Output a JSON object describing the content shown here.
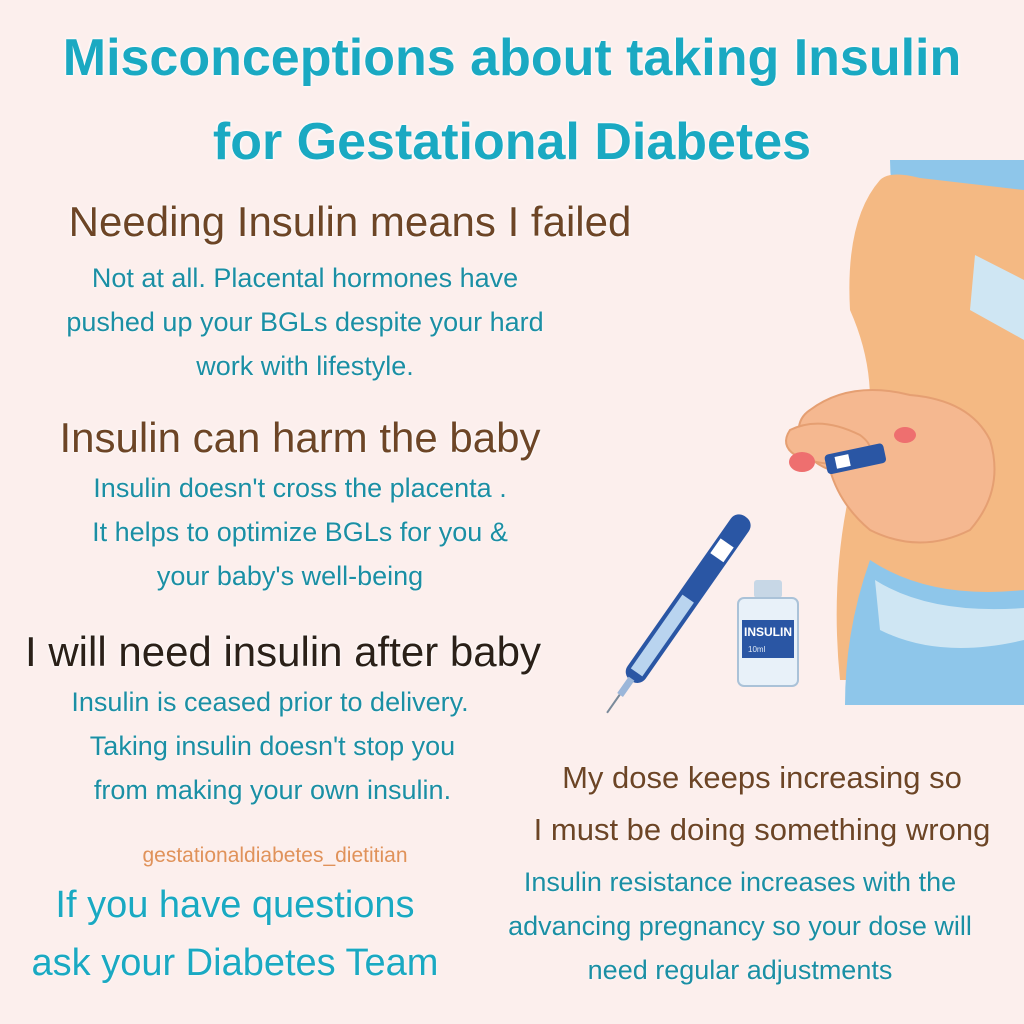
{
  "title": {
    "line1": "Misconceptions about taking Insulin",
    "line2": "for Gestational Diabetes"
  },
  "myths": [
    {
      "heading": "Needing Insulin means I failed",
      "lines": [
        "Not at all. Placental hormones have",
        "pushed up your BGLs despite your hard",
        "work with lifestyle."
      ]
    },
    {
      "heading": "Insulin can harm the baby",
      "lines": [
        "Insulin doesn't cross the placenta .",
        "It helps to optimize BGLs for you &",
        "your baby's well-being"
      ]
    },
    {
      "heading": "I will need insulin after baby",
      "lines": [
        "Insulin is ceased prior to delivery.",
        "Taking insulin doesn't stop you",
        "from making your own insulin."
      ]
    },
    {
      "heading_lines": [
        "My dose keeps increasing so",
        "I must be doing something wrong"
      ],
      "lines": [
        "Insulin resistance increases with the",
        "advancing pregnancy so your dose will",
        "need regular adjustments"
      ]
    }
  ],
  "handle": "gestationaldiabetes_dietitian",
  "cta": {
    "line1": "If you have questions",
    "line2": "ask your Diabetes Team"
  },
  "illustration": {
    "vial_label": "INSULIN",
    "vial_volume": "10ml"
  },
  "colors": {
    "background": "#fcefed",
    "title": "#1aa9c2",
    "heading": "#6d4526",
    "body": "#1b8fa4",
    "handle": "#e0925a",
    "skin": "#f4b983",
    "pen": "#2a56a4"
  }
}
